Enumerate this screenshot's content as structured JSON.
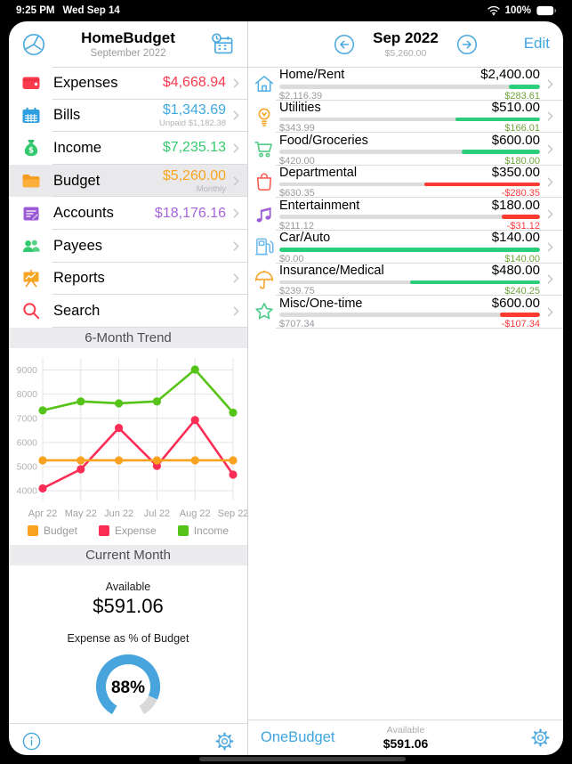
{
  "status_bar": {
    "time": "9:25 PM",
    "date": "Wed Sep 14",
    "battery_label": "100%",
    "wifi_icon": "wifi-icon",
    "battery_icon": "battery-icon"
  },
  "colors": {
    "accent_blue": "#3FA5DE",
    "under_green": "#6FA43C",
    "over_red": "#FB3A3C",
    "bar_green": "#2BCE7A",
    "bar_red": "#FB3A30",
    "bar_track": "#DCDCDC"
  },
  "left_panel": {
    "header": {
      "menu_icon": "pie-clock-icon",
      "title": "HomeBudget",
      "subtitle": "September 2022",
      "calendar_icon": "calendar-clock-icon"
    },
    "menu": [
      {
        "icon": "wallet-icon",
        "label": "Expenses",
        "value": "$4,668.94",
        "value_color": "#FB3A4E"
      },
      {
        "icon": "calendar-icon",
        "label": "Bills",
        "value": "$1,343.69",
        "value_color": "#3FA8DE",
        "sub": "Unpaid $1,182.38"
      },
      {
        "icon": "money-bag-icon",
        "label": "Income",
        "value": "$7,235.13",
        "value_color": "#35C96F"
      },
      {
        "icon": "folder-icon",
        "label": "Budget",
        "value": "$5,260.00",
        "value_color": "#F8A41F",
        "sub": "Monthly",
        "selected": true
      },
      {
        "icon": "accounts-icon",
        "label": "Accounts",
        "value": "$18,176.16",
        "value_color": "#A765DB"
      },
      {
        "icon": "payees-icon",
        "label": "Payees"
      },
      {
        "icon": "reports-icon",
        "label": "Reports"
      },
      {
        "icon": "search-icon",
        "label": "Search"
      }
    ],
    "trend_title": "6-Month Trend",
    "current_month": {
      "title": "Current Month",
      "available_label": "Available",
      "available_value": "$591.06",
      "gauge_label": "Expense as % of Budget",
      "gauge_pct": 88,
      "gauge_text": "88%",
      "gauge_color": "#47A4DC",
      "gauge_track": "#D9D9D9"
    },
    "toolbar": {
      "info_icon": "info-icon",
      "settings_icon": "gear-icon"
    }
  },
  "chart_data": {
    "type": "line",
    "title": "6-Month Trend",
    "x": [
      "Apr 22",
      "May 22",
      "Jun 22",
      "Jul 22",
      "Aug 22",
      "Sep 22"
    ],
    "series": [
      {
        "name": "Budget",
        "color": "#F9A21F",
        "values": [
          5260,
          5260,
          5260,
          5260,
          5260,
          5260
        ]
      },
      {
        "name": "Expense",
        "color": "#FB2D55",
        "values": [
          4100,
          4890,
          6600,
          5030,
          6930,
          4669
        ]
      },
      {
        "name": "Income",
        "color": "#55C318",
        "values": [
          7330,
          7700,
          7620,
          7700,
          9020,
          7235
        ]
      }
    ],
    "ylim": [
      3600,
      9500
    ],
    "yticks": [
      4000,
      5000,
      6000,
      7000,
      8000,
      9000
    ],
    "grid": true,
    "legend_position": "bottom"
  },
  "right_panel": {
    "header": {
      "prev_icon": "arrow-left-circle-icon",
      "title": "Sep 2022",
      "subtitle": "$5,260.00",
      "next_icon": "arrow-right-circle-icon",
      "edit_label": "Edit"
    },
    "categories": [
      {
        "icon": "house-icon",
        "name": "Home/Rent",
        "budget": "$2,400.00",
        "spent": "$2,116.39",
        "remaining": "$283.61",
        "status": "under",
        "bar_pct": 88.2
      },
      {
        "icon": "lightbulb-icon",
        "name": "Utilities",
        "budget": "$510.00",
        "spent": "$343.99",
        "remaining": "$166.01",
        "status": "under",
        "bar_pct": 67.5
      },
      {
        "icon": "cart-icon",
        "name": "Food/Groceries",
        "budget": "$600.00",
        "spent": "$420.00",
        "remaining": "$180.00",
        "status": "under",
        "bar_pct": 70
      },
      {
        "icon": "shopping-bag-icon",
        "name": "Departmental",
        "budget": "$350.00",
        "spent": "$630.35",
        "remaining": "-$280.35",
        "status": "over",
        "bar_pct": 55.5
      },
      {
        "icon": "music-note-icon",
        "name": "Entertainment",
        "budget": "$180.00",
        "spent": "$211.12",
        "remaining": "-$31.12",
        "status": "over",
        "bar_pct": 85.3
      },
      {
        "icon": "fuel-pump-icon",
        "name": "Car/Auto",
        "budget": "$140.00",
        "spent": "$0.00",
        "remaining": "$140.00",
        "status": "under",
        "bar_pct": 0
      },
      {
        "icon": "umbrella-icon",
        "name": "Insurance/Medical",
        "budget": "$480.00",
        "spent": "$239.75",
        "remaining": "$240.25",
        "status": "under",
        "bar_pct": 50
      },
      {
        "icon": "star-icon",
        "name": "Misc/One-time",
        "budget": "$600.00",
        "spent": "$707.34",
        "remaining": "-$107.34",
        "status": "over",
        "bar_pct": 84.8
      }
    ],
    "footer": {
      "link_label": "OneBudget",
      "available_label": "Available",
      "available_value": "$591.06",
      "settings_icon": "gear-icon"
    }
  }
}
